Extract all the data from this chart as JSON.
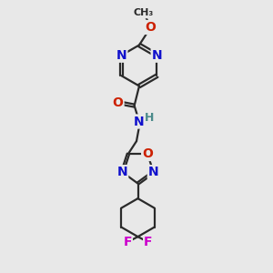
{
  "bg_color": "#e8e8e8",
  "bond_color": "#2a2a2a",
  "bond_width": 1.6,
  "atom_colors": {
    "N": "#1010cc",
    "O": "#cc2000",
    "F": "#cc00cc",
    "H": "#4a8a8a",
    "C": "#2a2a2a"
  },
  "figsize": [
    3.0,
    3.0
  ],
  "dpi": 100
}
